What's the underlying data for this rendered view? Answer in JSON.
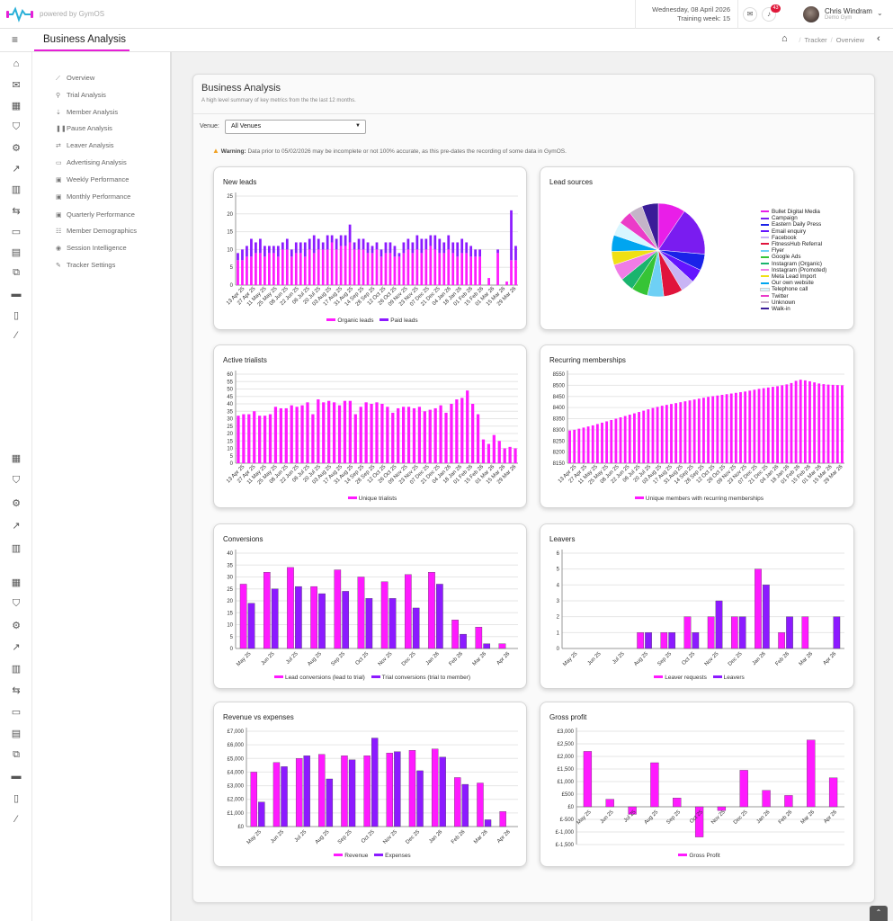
{
  "brand": {
    "powered": "powered by GymOS"
  },
  "header": {
    "date": "Wednesday, 08 April 2026",
    "training_week": "Training week: 15",
    "notif_count": "43",
    "user_name": "Chris Windram",
    "user_gym": "Demo Gym"
  },
  "subheader": {
    "title": "Business Analysis",
    "breadcrumb": [
      "Tracker",
      "Overview"
    ]
  },
  "menu": [
    {
      "icon": "chart-line-icon",
      "label": "Overview"
    },
    {
      "icon": "trial-icon",
      "label": "Trial Analysis"
    },
    {
      "icon": "member-icon",
      "label": "Member Analysis"
    },
    {
      "icon": "pause-icon",
      "label": "Pause Analysis"
    },
    {
      "icon": "leaver-icon",
      "label": "Leaver Analysis"
    },
    {
      "icon": "advert-icon",
      "label": "Advertising Analysis"
    },
    {
      "icon": "calendar-week-icon",
      "label": "Weekly Performance"
    },
    {
      "icon": "calendar-month-icon",
      "label": "Monthly Performance"
    },
    {
      "icon": "calendar-quarter-icon",
      "label": "Quarterly Performance"
    },
    {
      "icon": "demographics-icon",
      "label": "Member Demographics"
    },
    {
      "icon": "session-icon",
      "label": "Session Intelligence"
    },
    {
      "icon": "wrench-icon",
      "label": "Tracker Settings"
    }
  ],
  "card": {
    "title": "Business Analysis",
    "subtitle": "A high level summary of key metrics from the the last 12 months."
  },
  "venue": {
    "label": "Venue:",
    "selected": "All Venues"
  },
  "warning": {
    "bold": "Warning:",
    "text": "Data prior to 05/02/2026 may be incomplete or not 100% accurate, as this pre-dates the recording of some data in GymOS."
  },
  "colors": {
    "pink": "#ff1aff",
    "purple": "#8c1aff"
  },
  "chart_data": [
    {
      "id": "new_leads",
      "type": "bar",
      "title": "New leads",
      "stacked": true,
      "ylim": [
        0,
        25
      ],
      "yticks": [
        0,
        5,
        10,
        15,
        20,
        25
      ],
      "week_labels": [
        "13 Apr 25",
        "27 Apr 25",
        "11 May 25",
        "25 May 25",
        "08 Jun 25",
        "22 Jun 25",
        "06 Jul 25",
        "20 Jul 25",
        "03 Aug 25",
        "17 Aug 25",
        "31 Aug 25",
        "14 Sep 25",
        "28 Sep 25",
        "12 Oct 25",
        "26 Oct 25",
        "09 Nov 25",
        "23 Nov 25",
        "07 Dec 25",
        "21 Dec 25",
        "04 Jan 26",
        "18 Jan 26",
        "01 Feb 26",
        "15 Feb 26",
        "01 Mar 26",
        "15 Mar 26",
        "29 Mar 26"
      ],
      "series": [
        {
          "name": "Organic leads",
          "color": "#ff1aff",
          "values": [
            7,
            7,
            8,
            8,
            9,
            9,
            8,
            9,
            9,
            8,
            10,
            10,
            8,
            9,
            9,
            8,
            10,
            9,
            10,
            10,
            10,
            12,
            10,
            11,
            11,
            12,
            10,
            10,
            10,
            9,
            9,
            10,
            8,
            9,
            9,
            8,
            8,
            9,
            10,
            9,
            10,
            9,
            10,
            11,
            10,
            9,
            9,
            10,
            9,
            8,
            9,
            9,
            8,
            8,
            8,
            0,
            2,
            0,
            9,
            0,
            1,
            7,
            7
          ]
        },
        {
          "name": "Paid leads",
          "color": "#8c1aff",
          "values": [
            2,
            3,
            3,
            5,
            3,
            4,
            3,
            2,
            2,
            3,
            2,
            3,
            2,
            3,
            3,
            4,
            3,
            5,
            3,
            2,
            4,
            2,
            3,
            3,
            3,
            5,
            2,
            3,
            3,
            3,
            2,
            2,
            2,
            3,
            3,
            3,
            1,
            3,
            3,
            3,
            4,
            4,
            3,
            3,
            4,
            4,
            3,
            4,
            3,
            4,
            4,
            3,
            3,
            2,
            2,
            0,
            0,
            0,
            1,
            0,
            0,
            14,
            4
          ]
        }
      ]
    },
    {
      "id": "lead_sources",
      "type": "pie",
      "title": "Lead sources",
      "labels": [
        "Bullet Digital Media",
        "Campaign",
        "Eastern Daily Press",
        "Email enquiry",
        "Facebook",
        "FitnessHub Referral",
        "Flyer",
        "Google Ads",
        "Instagram (Organic)",
        "Instagram (Promoted)",
        "Meta Lead Import",
        "Our own website",
        "Telephone call",
        "Twitter",
        "Unknown",
        "Walk-in"
      ],
      "colors": [
        "#e91ee8",
        "#7a1cf0",
        "#1a22e8",
        "#6414ff",
        "#c8b4f5",
        "#e0143c",
        "#6ed0f5",
        "#36c436",
        "#1ab46e",
        "#f07ce6",
        "#f0e014",
        "#00a5f0",
        "#d8f6ff",
        "#eb3cc8",
        "#c4b4c8",
        "#3a1c98"
      ],
      "values": [
        10,
        18,
        6,
        5,
        5,
        7,
        6,
        6,
        5,
        6,
        5,
        6,
        5,
        5,
        5,
        6
      ]
    },
    {
      "id": "active_trialists",
      "type": "bar",
      "title": "Active trialists",
      "ylim": [
        0,
        60
      ],
      "yticks": [
        0,
        5,
        10,
        15,
        20,
        25,
        30,
        35,
        40,
        45,
        50,
        55,
        60
      ],
      "week_labels": [
        "13 Apr 25",
        "27 Apr 25",
        "11 May 25",
        "25 May 25",
        "08 Jun 25",
        "22 Jun 25",
        "06 Jul 25",
        "20 Jul 25",
        "03 Aug 25",
        "17 Aug 25",
        "31 Aug 25",
        "14 Sep 25",
        "28 Sep 25",
        "12 Oct 25",
        "26 Oct 25",
        "09 Nov 25",
        "23 Nov 25",
        "07 Dec 25",
        "21 Dec 25",
        "04 Jan 26",
        "18 Jan 26",
        "01 Feb 26",
        "15 Feb 26",
        "01 Mar 26",
        "15 Mar 26",
        "29 Mar 26"
      ],
      "series": [
        {
          "name": "Unique trialists",
          "color": "#ff1aff",
          "values": [
            32,
            33,
            33,
            35,
            32,
            32,
            33,
            38,
            37,
            37,
            39,
            38,
            39,
            41,
            33,
            43,
            41,
            42,
            41,
            39,
            42,
            42,
            33,
            38,
            41,
            40,
            41,
            40,
            38,
            34,
            37,
            38,
            38,
            37,
            38,
            35,
            36,
            37,
            39,
            34,
            40,
            43,
            44,
            49,
            40,
            33,
            16,
            13,
            19,
            15,
            10,
            11,
            10
          ]
        }
      ]
    },
    {
      "id": "recurring_memberships",
      "type": "bar",
      "title": "Recurring memberships",
      "ylim": [
        8150,
        8550
      ],
      "yticks": [
        8150,
        8200,
        8250,
        8300,
        8350,
        8400,
        8450,
        8500,
        8550
      ],
      "week_labels": [
        "13 Apr 25",
        "27 Apr 25",
        "11 May 25",
        "25 May 25",
        "08 Jun 25",
        "22 Jun 25",
        "06 Jul 25",
        "20 Jul 25",
        "03 Aug 25",
        "17 Aug 25",
        "31 Aug 25",
        "14 Sep 25",
        "28 Sep 25",
        "12 Oct 25",
        "26 Oct 25",
        "09 Nov 25",
        "23 Nov 25",
        "07 Dec 25",
        "21 Dec 25",
        "04 Jan 26",
        "18 Jan 26",
        "01 Feb 26",
        "15 Feb 26",
        "01 Mar 26",
        "15 Mar 26",
        "29 Mar 26"
      ],
      "series": [
        {
          "name": "Unique members with recurring memberships",
          "color": "#ff1aff",
          "values": [
            8297,
            8300,
            8305,
            8310,
            8315,
            8320,
            8326,
            8332,
            8338,
            8344,
            8350,
            8356,
            8362,
            8368,
            8374,
            8380,
            8386,
            8392,
            8398,
            8403,
            8408,
            8412,
            8416,
            8420,
            8424,
            8428,
            8432,
            8436,
            8440,
            8444,
            8448,
            8451,
            8454,
            8457,
            8460,
            8463,
            8466,
            8469,
            8472,
            8476,
            8480,
            8484,
            8487,
            8490,
            8493,
            8496,
            8500,
            8504,
            8510,
            8520,
            8525,
            8522,
            8518,
            8513,
            8508,
            8505,
            8503,
            8502,
            8501,
            8500
          ]
        }
      ]
    },
    {
      "id": "conversions",
      "type": "bar",
      "title": "Conversions",
      "ylim": [
        0,
        40
      ],
      "yticks": [
        0,
        5,
        10,
        15,
        20,
        25,
        30,
        35,
        40
      ],
      "categories": [
        "May 25",
        "Jun 25",
        "Jul 25",
        "Aug 25",
        "Sep 25",
        "Oct 25",
        "Nov 25",
        "Dec 25",
        "Jan 26",
        "Feb 26",
        "Mar 26",
        "Apr 26"
      ],
      "series": [
        {
          "name": "Lead conversions (lead to trial)",
          "color": "#ff1aff",
          "values": [
            27,
            32,
            34,
            26,
            33,
            30,
            28,
            31,
            32,
            12,
            9,
            2
          ]
        },
        {
          "name": "Trial conversions (trial to member)",
          "color": "#8c1aff",
          "values": [
            19,
            25,
            26,
            23,
            24,
            21,
            21,
            17,
            27,
            6,
            2,
            0
          ]
        }
      ]
    },
    {
      "id": "leavers",
      "type": "bar",
      "title": "Leavers",
      "ylim": [
        0,
        6
      ],
      "yticks": [
        0,
        1,
        2,
        3,
        4,
        5,
        6
      ],
      "categories": [
        "May 25",
        "Jun 25",
        "Jul 25",
        "Aug 25",
        "Sep 25",
        "Oct 25",
        "Nov 25",
        "Dec 25",
        "Jan 26",
        "Feb 26",
        "Mar 26",
        "Apr 26"
      ],
      "series": [
        {
          "name": "Leaver requests",
          "color": "#ff1aff",
          "values": [
            0,
            0,
            0,
            1,
            1,
            2,
            2,
            2,
            5,
            1,
            2,
            0
          ]
        },
        {
          "name": "Leavers",
          "color": "#8c1aff",
          "values": [
            0,
            0,
            0,
            1,
            1,
            1,
            3,
            2,
            4,
            2,
            0,
            2
          ]
        }
      ]
    },
    {
      "id": "revenue_expenses",
      "type": "bar",
      "title": "Revenue vs expenses",
      "ylim": [
        0,
        7000
      ],
      "yticks": [
        0,
        1000,
        2000,
        3000,
        4000,
        5000,
        6000,
        7000
      ],
      "ytick_labels": [
        "£0",
        "£1,000",
        "£2,000",
        "£3,000",
        "£4,000",
        "£5,000",
        "£6,000",
        "£7,000"
      ],
      "categories": [
        "May 25",
        "Jun 25",
        "Jul 25",
        "Aug 25",
        "Sep 25",
        "Oct 25",
        "Nov 25",
        "Dec 25",
        "Jan 26",
        "Feb 26",
        "Mar 26",
        "Apr 26"
      ],
      "series": [
        {
          "name": "Revenue",
          "color": "#ff1aff",
          "values": [
            4000,
            4700,
            5000,
            5300,
            5200,
            5200,
            5400,
            5600,
            5700,
            3600,
            3200,
            1100
          ]
        },
        {
          "name": "Expenses",
          "color": "#8c1aff",
          "values": [
            1800,
            4400,
            5200,
            3500,
            4900,
            6500,
            5500,
            4100,
            5100,
            3100,
            500,
            0
          ]
        }
      ]
    },
    {
      "id": "gross_profit",
      "type": "bar",
      "title": "Gross profit",
      "ylim": [
        -1500,
        3000
      ],
      "yticks": [
        -1500,
        -1000,
        -500,
        0,
        500,
        1000,
        1500,
        2000,
        2500,
        3000
      ],
      "ytick_labels": [
        "£-1,500",
        "£-1,000",
        "£-500",
        "£0",
        "£500",
        "£1,000",
        "£1,500",
        "£2,000",
        "£2,500",
        "£3,000"
      ],
      "categories": [
        "May 25",
        "Jun 25",
        "Jul 25",
        "Aug 25",
        "Sep 25",
        "Oct 25",
        "Nov 25",
        "Dec 25",
        "Jan 26",
        "Feb 26",
        "Mar 26",
        "Apr 26"
      ],
      "series": [
        {
          "name": "Gross Profit",
          "color": "#ff1aff",
          "values": [
            2200,
            300,
            -300,
            1750,
            350,
            -1200,
            -150,
            1450,
            650,
            450,
            2650,
            1150
          ]
        }
      ]
    }
  ]
}
